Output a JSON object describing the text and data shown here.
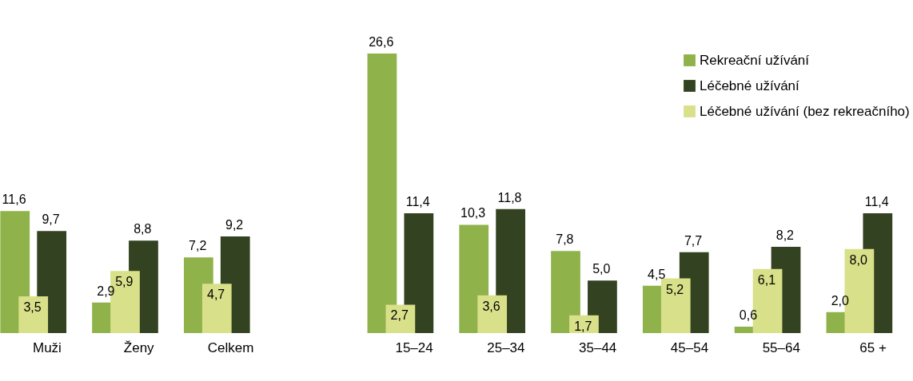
{
  "chart_data": {
    "type": "bar",
    "categories": [
      "Muži",
      "Ženy",
      "Celkem",
      null,
      "15–24",
      "25–34",
      "35–44",
      "45–54",
      "55–64",
      "65 +"
    ],
    "legend": "top right",
    "series": [
      {
        "name": "Rekreační užívání",
        "color": "#8fb24a",
        "values": [
          11.6,
          2.9,
          7.2,
          null,
          26.6,
          10.3,
          7.8,
          4.5,
          0.6,
          2.0
        ],
        "value_labels": [
          "11,6",
          "2,9",
          "7,2",
          null,
          "26,6",
          "10,3",
          "7,8",
          "4,5",
          "0,6",
          "2,0"
        ]
      },
      {
        "name": "Léčebné užívání",
        "color": "#334220",
        "values": [
          9.7,
          8.8,
          9.2,
          null,
          11.4,
          11.8,
          5.0,
          7.7,
          8.2,
          11.4
        ],
        "value_labels": [
          "9,7",
          "8,8",
          "9,2",
          null,
          "11,4",
          "11,8",
          "5,0",
          "7,7",
          "8,2",
          "11,4"
        ]
      },
      {
        "name": "Léčebné užívání (bez rekreačního)",
        "color": "#d9e08a",
        "values": [
          3.5,
          5.9,
          4.7,
          null,
          2.7,
          3.6,
          1.7,
          5.2,
          6.1,
          8.0
        ],
        "value_labels": [
          "3,5",
          "5,9",
          "4,7",
          null,
          "2,7",
          "3,6",
          "1,7",
          "5,2",
          "6,1",
          "8,0"
        ]
      }
    ]
  }
}
